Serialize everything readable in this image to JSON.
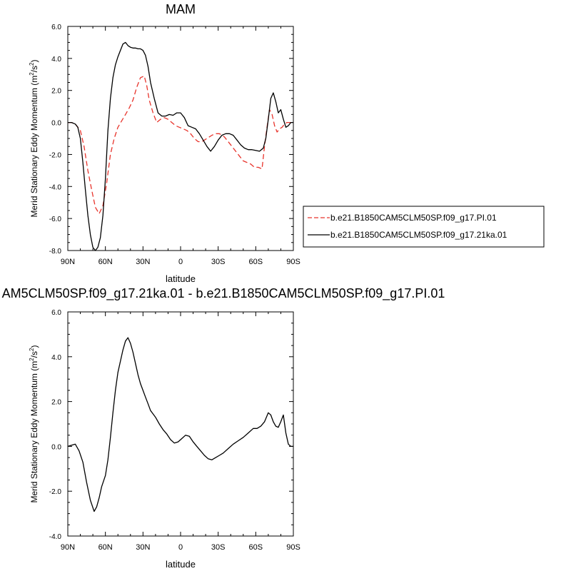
{
  "chart_data": [
    {
      "type": "line",
      "title": "MAM",
      "xlabel": "latitude",
      "ylabel": "Merid Stationary Eddy Momentum (m",
      "ylabel_sup1": "2",
      "ylabel_mid": "/s",
      "ylabel_sup2": "2",
      "ylabel_end": ")",
      "xlim": [
        90,
        -90
      ],
      "ylim": [
        -8.0,
        6.0
      ],
      "xticks": [
        90,
        60,
        30,
        0,
        -30,
        -60,
        -90
      ],
      "xticklabels": [
        "90N",
        "60N",
        "30N",
        "0",
        "30S",
        "60S",
        "90S"
      ],
      "yticks": [
        -8,
        -6,
        -4,
        -2,
        0,
        2,
        4,
        6
      ],
      "yticklabels": [
        "-8.0",
        "-6.0",
        "-4.0",
        "-2.0",
        "0.0",
        "2.0",
        "4.0",
        "6.0"
      ],
      "legend_position": "right",
      "series": [
        {
          "name": "b.e21.B1850CAM5CLM50SP.f09_g17.PI.01",
          "color": "#e8342c",
          "dash": "dashed",
          "x": [
            90,
            87,
            84,
            80,
            77,
            74,
            71,
            68,
            65,
            62,
            59,
            56,
            53,
            50,
            47,
            44,
            41,
            38,
            35,
            32,
            29,
            27,
            25,
            22,
            19,
            16,
            13,
            10,
            7,
            4,
            1,
            -2,
            -5,
            -8,
            -11,
            -14,
            -17,
            -21,
            -25,
            -28,
            -31,
            -35,
            -39,
            -43,
            -47,
            -50,
            -53,
            -56,
            -59,
            -62,
            -65,
            -67,
            -69,
            -71,
            -73,
            -75,
            -77,
            -79,
            -81,
            -83,
            -85,
            -87,
            -90
          ],
          "y": [
            0.0,
            0.0,
            -0.1,
            -0.5,
            -1.5,
            -3.0,
            -4.2,
            -5.3,
            -5.7,
            -5.2,
            -3.8,
            -2.0,
            -1.0,
            -0.3,
            0.1,
            0.5,
            0.9,
            1.4,
            2.2,
            2.8,
            2.9,
            2.3,
            1.4,
            0.6,
            0.0,
            0.2,
            0.3,
            0.2,
            0.0,
            -0.2,
            -0.3,
            -0.4,
            -0.5,
            -0.7,
            -1.0,
            -1.2,
            -1.2,
            -1.0,
            -0.8,
            -0.7,
            -0.7,
            -0.9,
            -1.3,
            -1.7,
            -2.1,
            -2.4,
            -2.5,
            -2.6,
            -2.8,
            -2.8,
            -2.9,
            -1.5,
            -0.3,
            0.8,
            0.5,
            -0.2,
            -0.6,
            -0.4,
            -0.3,
            -0.1,
            0.0,
            0.0,
            0.0
          ]
        },
        {
          "name": "b.e21.B1850CAM5CLM50SP.f09_g17.21ka.01",
          "color": "#000000",
          "dash": "solid",
          "x": [
            90,
            87,
            84,
            82,
            80,
            78,
            76,
            74,
            72,
            70,
            68,
            66,
            64,
            62,
            60,
            58,
            56,
            54,
            52,
            50,
            48,
            46,
            44,
            42,
            40,
            38,
            36,
            34,
            32,
            30,
            28,
            26,
            24,
            21,
            18,
            15,
            12,
            9,
            6,
            3,
            0,
            -3,
            -6,
            -9,
            -12,
            -15,
            -18,
            -21,
            -24,
            -27,
            -30,
            -33,
            -36,
            -39,
            -42,
            -45,
            -48,
            -51,
            -54,
            -57,
            -60,
            -63,
            -66,
            -68,
            -70,
            -72,
            -74,
            -76,
            -78,
            -80,
            -82,
            -84,
            -86,
            -88,
            -90
          ],
          "y": [
            0.0,
            0.0,
            -0.1,
            -0.3,
            -1.0,
            -2.5,
            -4.2,
            -5.8,
            -7.0,
            -7.8,
            -8.0,
            -7.8,
            -7.2,
            -5.8,
            -3.5,
            -0.5,
            1.5,
            2.8,
            3.6,
            4.1,
            4.5,
            4.9,
            5.0,
            4.8,
            4.7,
            4.65,
            4.65,
            4.6,
            4.6,
            4.5,
            4.2,
            3.5,
            2.5,
            1.5,
            0.6,
            0.4,
            0.4,
            0.5,
            0.45,
            0.6,
            0.6,
            0.3,
            -0.2,
            -0.3,
            -0.4,
            -0.7,
            -1.1,
            -1.5,
            -1.8,
            -1.5,
            -1.1,
            -0.8,
            -0.7,
            -0.7,
            -0.8,
            -1.1,
            -1.4,
            -1.6,
            -1.7,
            -1.7,
            -1.75,
            -1.8,
            -1.6,
            -1.0,
            0.2,
            1.5,
            1.85,
            1.3,
            0.6,
            0.8,
            0.2,
            -0.3,
            -0.2,
            0.0,
            0.0
          ]
        }
      ]
    },
    {
      "type": "line",
      "title": "AM5CLM50SP.f09_g17.21ka.01 - b.e21.B1850CAM5CLM50SP.f09_g17.PI.01",
      "xlabel": "latitude",
      "ylabel": "Merid Stationary Eddy Momentum (m",
      "ylabel_sup1": "2",
      "ylabel_mid": "/s",
      "ylabel_sup2": "2",
      "ylabel_end": ")",
      "xlim": [
        90,
        -90
      ],
      "ylim": [
        -4.0,
        6.0
      ],
      "xticks": [
        90,
        60,
        30,
        0,
        -30,
        -60,
        -90
      ],
      "xticklabels": [
        "90N",
        "60N",
        "30N",
        "0",
        "30S",
        "60S",
        "90S"
      ],
      "yticks": [
        -4,
        -2,
        0,
        2,
        4,
        6
      ],
      "yticklabels": [
        "-4.0",
        "-2.0",
        "0.0",
        "2.0",
        "4.0",
        "6.0"
      ],
      "series": [
        {
          "color": "#000000",
          "dash": "solid",
          "x": [
            90,
            87,
            84,
            81,
            78,
            75,
            72,
            69,
            67,
            65,
            63,
            60,
            58,
            56,
            54,
            52,
            50,
            48,
            46,
            44,
            42,
            40,
            38,
            36,
            34,
            32,
            30,
            28,
            26,
            24,
            22,
            20,
            17,
            14,
            11,
            8,
            5,
            2,
            -1,
            -4,
            -7,
            -10,
            -13,
            -16,
            -19,
            -22,
            -25,
            -28,
            -31,
            -34,
            -38,
            -42,
            -46,
            -50,
            -54,
            -58,
            -61,
            -64,
            -67,
            -70,
            -72,
            -74,
            -76,
            -78,
            -80,
            -82,
            -84,
            -86,
            -88,
            -90
          ],
          "y": [
            0.0,
            0.05,
            0.1,
            -0.2,
            -0.7,
            -1.6,
            -2.4,
            -2.9,
            -2.7,
            -2.3,
            -1.8,
            -1.3,
            -0.6,
            0.4,
            1.5,
            2.5,
            3.3,
            3.8,
            4.3,
            4.7,
            4.85,
            4.6,
            4.2,
            3.7,
            3.2,
            2.8,
            2.5,
            2.2,
            1.9,
            1.6,
            1.45,
            1.3,
            1.0,
            0.75,
            0.55,
            0.3,
            0.15,
            0.2,
            0.35,
            0.5,
            0.45,
            0.2,
            0.0,
            -0.2,
            -0.4,
            -0.55,
            -0.6,
            -0.5,
            -0.4,
            -0.3,
            -0.1,
            0.1,
            0.25,
            0.4,
            0.6,
            0.8,
            0.8,
            0.9,
            1.1,
            1.5,
            1.4,
            1.1,
            0.9,
            0.85,
            1.1,
            1.4,
            0.6,
            0.1,
            0.0,
            0.0
          ]
        }
      ]
    }
  ]
}
